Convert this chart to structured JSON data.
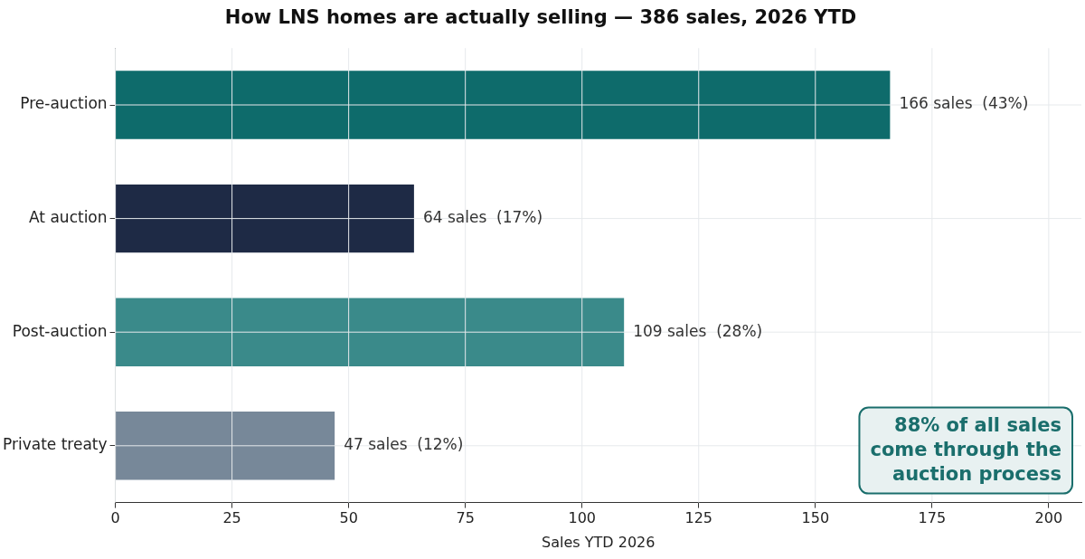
{
  "chart_data": {
    "type": "bar",
    "orientation": "horizontal",
    "title": "How LNS homes are actually selling — 386 sales, 2026 YTD",
    "xlabel": "Sales YTD 2026",
    "categories": [
      "Pre-auction",
      "At auction",
      "Post-auction",
      "Private treaty"
    ],
    "values": [
      166,
      64,
      109,
      47
    ],
    "colors": [
      "#0e6b6b",
      "#1e2a45",
      "#3a8a8a",
      "#778899"
    ],
    "value_labels": [
      "166 sales  (43%)",
      "64 sales  (17%)",
      "109 sales  (28%)",
      "47 sales  (12%)"
    ],
    "xlim": [
      0,
      207
    ],
    "xticks": [
      0,
      25,
      50,
      75,
      100,
      125,
      150,
      175,
      200
    ],
    "grid": true,
    "annotations": [
      "88% of all sales\ncome through the\nauction process"
    ]
  }
}
